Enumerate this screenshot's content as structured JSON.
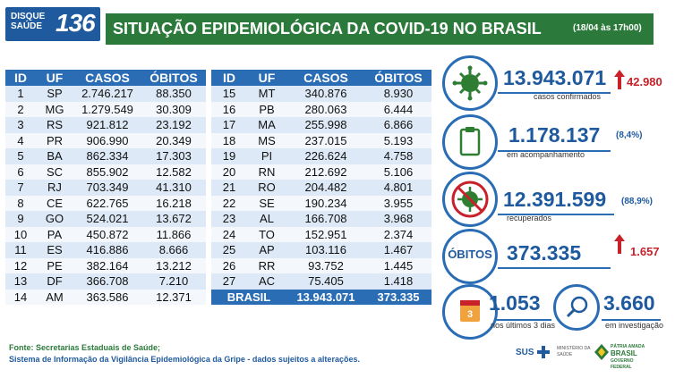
{
  "header": {
    "hotline_line1": "DISQUE",
    "hotline_line2": "SAÚDE",
    "hotline_number": "136",
    "title": "SITUAÇÃO EPIDEMIOLÓGICA DA COVID-19 NO BRASIL",
    "date": "(18/04 às 17h00)"
  },
  "table": {
    "headers": [
      "ID",
      "UF",
      "CASOS",
      "ÓBITOS"
    ],
    "left_rows": [
      [
        "1",
        "SP",
        "2.746.217",
        "88.350"
      ],
      [
        "2",
        "MG",
        "1.279.549",
        "30.309"
      ],
      [
        "3",
        "RS",
        "921.812",
        "23.192"
      ],
      [
        "4",
        "PR",
        "906.990",
        "20.349"
      ],
      [
        "5",
        "BA",
        "862.334",
        "17.303"
      ],
      [
        "6",
        "SC",
        "855.902",
        "12.582"
      ],
      [
        "7",
        "RJ",
        "703.349",
        "41.310"
      ],
      [
        "8",
        "CE",
        "622.765",
        "16.218"
      ],
      [
        "9",
        "GO",
        "524.021",
        "13.672"
      ],
      [
        "10",
        "PA",
        "450.872",
        "11.866"
      ],
      [
        "11",
        "ES",
        "416.886",
        "8.666"
      ],
      [
        "12",
        "PE",
        "382.164",
        "13.212"
      ],
      [
        "13",
        "DF",
        "366.708",
        "7.210"
      ],
      [
        "14",
        "AM",
        "363.586",
        "12.371"
      ]
    ],
    "right_rows": [
      [
        "15",
        "MT",
        "340.876",
        "8.930"
      ],
      [
        "16",
        "PB",
        "280.063",
        "6.444"
      ],
      [
        "17",
        "MA",
        "255.998",
        "6.866"
      ],
      [
        "18",
        "MS",
        "237.015",
        "5.193"
      ],
      [
        "19",
        "PI",
        "226.624",
        "4.758"
      ],
      [
        "20",
        "RN",
        "212.692",
        "5.106"
      ],
      [
        "21",
        "RO",
        "204.482",
        "4.801"
      ],
      [
        "22",
        "SE",
        "190.234",
        "3.955"
      ],
      [
        "23",
        "AL",
        "166.708",
        "3.968"
      ],
      [
        "24",
        "TO",
        "152.951",
        "2.374"
      ],
      [
        "25",
        "AP",
        "103.116",
        "1.467"
      ],
      [
        "26",
        "RR",
        "93.752",
        "1.445"
      ],
      [
        "27",
        "AC",
        "75.405",
        "1.418"
      ]
    ],
    "total_label": "BRASIL",
    "total_cases": "13.943.071",
    "total_deaths": "373.335"
  },
  "stats": {
    "confirmed": {
      "value": "13.943.071",
      "increase": "42.980",
      "caption": "casos confirmados",
      "icon": "virus-icon"
    },
    "monitoring": {
      "value": "1.178.137",
      "pct": "(8,4%)",
      "caption": "em acompanhamento",
      "icon": "clipboard-icon"
    },
    "recovered": {
      "value": "12.391.599",
      "pct": "(88,9%)",
      "caption": "recuperados",
      "icon": "virus-crossed-icon"
    },
    "deaths": {
      "label": "ÓBITOS",
      "value": "373.335",
      "increase": "1.657"
    },
    "last3": {
      "value": "1.053",
      "caption": "nos últimos 3 dias",
      "badge": "3",
      "icon": "calendar-icon"
    },
    "investigation": {
      "value": "3.660",
      "caption": "em investigação",
      "icon": "magnifier-icon"
    }
  },
  "footer": {
    "line1": "Fonte: Secretarias Estaduais de Saúde;",
    "line2": "Sistema de Informação da Vigilância Epidemiológica da Gripe - dados sujeitos a alterações."
  },
  "logos": {
    "sus": "SUS",
    "ministry_line1": "MINISTÉRIO DA",
    "ministry_line2": "SAÚDE",
    "gov_line1": "PÁTRIA AMADA",
    "gov_line2": "BRASIL",
    "gov_line3": "GOVERNO FEDERAL"
  },
  "colors": {
    "blue": "#2a6db5",
    "green": "#2c7a3b",
    "red": "#c8212a"
  }
}
